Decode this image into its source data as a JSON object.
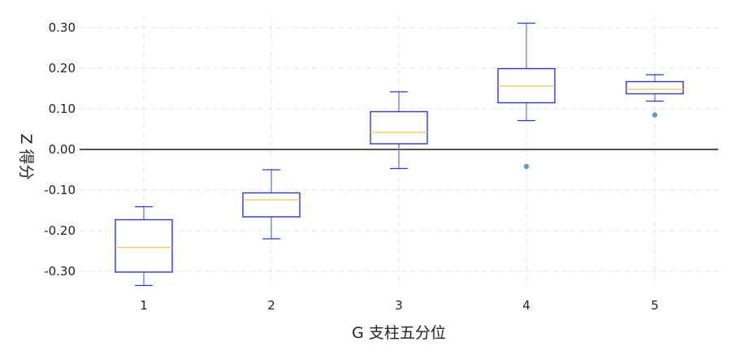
{
  "chart_data": {
    "type": "boxplot",
    "xlabel": "G 支柱五分位",
    "ylabel": "Z 得分",
    "categories": [
      "1",
      "2",
      "3",
      "4",
      "5"
    ],
    "ylim": [
      -0.35,
      0.33
    ],
    "yticks": [
      -0.3,
      -0.2,
      -0.1,
      0.0,
      0.1,
      0.2,
      0.3
    ],
    "ytick_labels": [
      "-0.30",
      "-0.20",
      "-0.10",
      "0.00",
      "0.10",
      "0.20",
      "0.30"
    ],
    "grid": true,
    "zero_line": true,
    "boxes": [
      {
        "category": "1",
        "whisker_low": -0.335,
        "q1": -0.302,
        "median": -0.241,
        "q3": -0.173,
        "whisker_high": -0.141,
        "outliers": []
      },
      {
        "category": "2",
        "whisker_low": -0.22,
        "q1": -0.166,
        "median": -0.124,
        "q3": -0.107,
        "whisker_high": -0.05,
        "outliers": []
      },
      {
        "category": "3",
        "whisker_low": -0.047,
        "q1": 0.014,
        "median": 0.042,
        "q3": 0.093,
        "whisker_high": 0.142,
        "outliers": []
      },
      {
        "category": "4",
        "whisker_low": 0.071,
        "q1": 0.115,
        "median": 0.156,
        "q3": 0.199,
        "whisker_high": 0.311,
        "outliers": [
          -0.042
        ]
      },
      {
        "category": "5",
        "whisker_low": 0.119,
        "q1": 0.137,
        "median": 0.148,
        "q3": 0.167,
        "whisker_high": 0.184,
        "outliers": [
          0.085
        ]
      }
    ],
    "colors": {
      "box": "#2b36e0",
      "median": "#f5c24a",
      "whisker": "#4a7fb8",
      "outlier": "#6a96c4",
      "grid": "#e3e3e3",
      "zero_line": "#1a1a1a"
    }
  }
}
